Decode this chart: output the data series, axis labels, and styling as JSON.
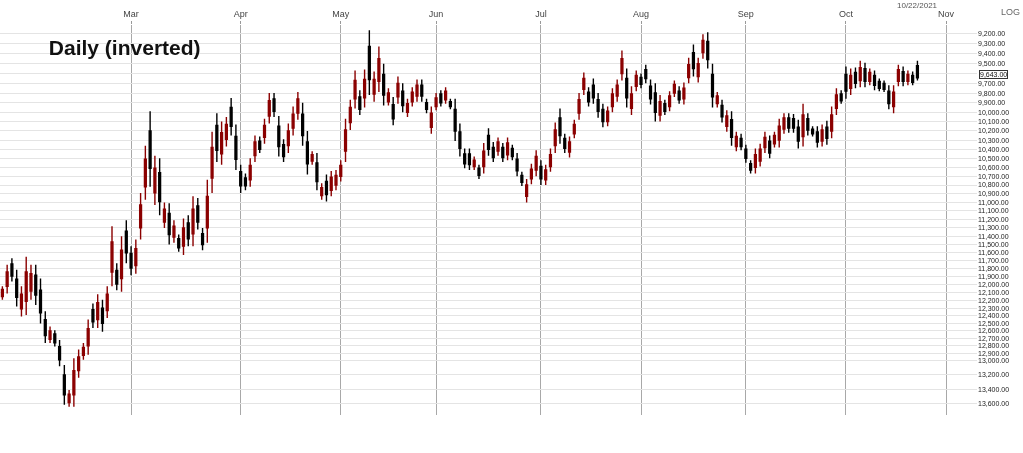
{
  "chart_data": {
    "type": "candlestick",
    "title": "Daily (inverted)",
    "ylabel": "LOG",
    "categories": [
      null,
      null,
      null,
      null,
      null,
      null,
      null,
      null,
      null,
      null,
      null,
      null,
      null,
      null,
      null,
      null,
      null,
      null,
      null,
      null,
      null,
      null,
      null,
      null,
      null,
      null,
      null,
      "Mar",
      null,
      null,
      null,
      null,
      null,
      null,
      null,
      null,
      null,
      null,
      null,
      null,
      null,
      null,
      null,
      null,
      null,
      null,
      null,
      null,
      null,
      null,
      "Apr",
      null,
      null,
      null,
      null,
      null,
      null,
      null,
      null,
      null,
      null,
      null,
      null,
      null,
      null,
      null,
      null,
      null,
      null,
      null,
      null,
      "May",
      null,
      null,
      null,
      null,
      null,
      null,
      null,
      null,
      null,
      null,
      null,
      null,
      null,
      null,
      null,
      null,
      null,
      null,
      null,
      "Jun",
      null,
      null,
      null,
      null,
      null,
      null,
      null,
      null,
      null,
      null,
      null,
      null,
      null,
      null,
      null,
      null,
      null,
      null,
      null,
      null,
      null,
      "Jul",
      null,
      null,
      null,
      null,
      null,
      null,
      null,
      null,
      null,
      null,
      null,
      null,
      null,
      null,
      null,
      null,
      null,
      null,
      null,
      null,
      "Aug",
      null,
      null,
      null,
      null,
      null,
      null,
      null,
      null,
      null,
      null,
      null,
      null,
      null,
      null,
      null,
      null,
      null,
      null,
      null,
      null,
      null,
      "Sep",
      null,
      null,
      null,
      null,
      null,
      null,
      null,
      null,
      null,
      null,
      null,
      null,
      null,
      null,
      null,
      null,
      null,
      null,
      null,
      null,
      "Oct",
      null,
      null,
      null,
      null,
      null,
      null,
      null,
      null,
      null,
      null,
      null,
      null,
      null,
      null,
      null,
      null,
      null,
      null,
      null,
      null,
      "Nov",
      null,
      null,
      null,
      null,
      null,
      null
    ],
    "ohlc": [
      [
        12150,
        12190,
        12020,
        12060
      ],
      [
        12020,
        12110,
        11750,
        11840
      ],
      [
        11740,
        11960,
        11670,
        11890
      ],
      [
        11930,
        12280,
        11810,
        12160
      ],
      [
        12310,
        12410,
        12020,
        12120
      ],
      [
        12210,
        12390,
        11650,
        11840
      ],
      [
        12080,
        12190,
        11750,
        11860
      ],
      [
        11880,
        12260,
        11750,
        12130
      ],
      [
        12070,
        12500,
        11920,
        12360
      ],
      [
        12450,
        12760,
        12340,
        12660
      ],
      [
        12710,
        12760,
        12540,
        12600
      ],
      [
        12640,
        12810,
        12590,
        12760
      ],
      [
        12810,
        13080,
        12720,
        12990
      ],
      [
        13200,
        13620,
        13060,
        13480
      ],
      [
        13590,
        13650,
        13410,
        13470
      ],
      [
        13480,
        13650,
        12970,
        13140
      ],
      [
        13140,
        13240,
        12850,
        12950
      ],
      [
        12930,
        12990,
        12760,
        12820
      ],
      [
        12800,
        12920,
        12450,
        12570
      ],
      [
        12320,
        12560,
        12240,
        12480
      ],
      [
        12450,
        12560,
        12120,
        12230
      ],
      [
        12300,
        12610,
        12190,
        12500
      ],
      [
        12330,
        12430,
        12020,
        12120
      ],
      [
        11840,
        12020,
        11280,
        11470
      ],
      [
        11820,
        12070,
        11730,
        11990
      ],
      [
        11920,
        12090,
        11400,
        11570
      ],
      [
        11340,
        11730,
        11210,
        11600
      ],
      [
        11610,
        11880,
        11520,
        11790
      ],
      [
        11760,
        11860,
        11440,
        11550
      ],
      [
        11300,
        11440,
        10890,
        11030
      ],
      [
        10820,
        10970,
        10360,
        10510
      ],
      [
        10200,
        10820,
        9990,
        10610
      ],
      [
        10890,
        11030,
        10470,
        10610
      ],
      [
        10660,
        11150,
        10500,
        10990
      ],
      [
        11230,
        11300,
        11000,
        11080
      ],
      [
        11130,
        11500,
        11010,
        11380
      ],
      [
        11410,
        11480,
        11210,
        11280
      ],
      [
        11430,
        11590,
        11380,
        11540
      ],
      [
        11520,
        11630,
        11190,
        11300
      ],
      [
        11240,
        11520,
        11150,
        11430
      ],
      [
        11370,
        11520,
        10930,
        11080
      ],
      [
        11040,
        11320,
        10950,
        11230
      ],
      [
        11370,
        11570,
        11300,
        11500
      ],
      [
        11300,
        11480,
        10740,
        10930
      ],
      [
        10720,
        10890,
        10210,
        10380
      ],
      [
        10140,
        10540,
        10010,
        10410
      ],
      [
        10450,
        10570,
        10100,
        10220
      ],
      [
        10290,
        10370,
        10050,
        10130
      ],
      [
        9950,
        10250,
        9850,
        10150
      ],
      [
        10260,
        10630,
        10130,
        10510
      ],
      [
        10650,
        10890,
        10570,
        10810
      ],
      [
        10720,
        10860,
        10670,
        10810
      ],
      [
        10740,
        10820,
        10500,
        10580
      ],
      [
        10470,
        10540,
        10250,
        10320
      ],
      [
        10310,
        10440,
        10260,
        10400
      ],
      [
        10270,
        10340,
        10070,
        10140
      ],
      [
        10040,
        10120,
        9800,
        9880
      ],
      [
        9860,
        10050,
        9800,
        9990
      ],
      [
        10150,
        10480,
        10040,
        10370
      ],
      [
        10350,
        10540,
        10290,
        10480
      ],
      [
        10360,
        10440,
        10120,
        10200
      ],
      [
        10170,
        10250,
        9940,
        10020
      ],
      [
        10010,
        10080,
        9790,
        9860
      ],
      [
        10020,
        10360,
        9900,
        10250
      ],
      [
        10320,
        10680,
        10200,
        10560
      ],
      [
        10530,
        10570,
        10420,
        10460
      ],
      [
        10550,
        10860,
        10440,
        10760
      ],
      [
        10920,
        10970,
        10780,
        10830
      ],
      [
        10760,
        10990,
        10680,
        10910
      ],
      [
        10860,
        10930,
        10640,
        10710
      ],
      [
        10800,
        10860,
        10630,
        10690
      ],
      [
        10700,
        10760,
        10520,
        10580
      ],
      [
        10420,
        10540,
        10070,
        10190
      ],
      [
        10110,
        10190,
        9870,
        9950
      ],
      [
        9860,
        9960,
        9570,
        9670
      ],
      [
        9840,
        10030,
        9770,
        9970
      ],
      [
        9850,
        9950,
        9560,
        9660
      ],
      [
        9330,
        9820,
        9170,
        9660
      ],
      [
        9810,
        9890,
        9580,
        9660
      ],
      [
        9680,
        9790,
        9330,
        9450
      ],
      [
        9610,
        9930,
        9500,
        9820
      ],
      [
        9890,
        9930,
        9750,
        9800
      ],
      [
        9920,
        10140,
        9840,
        10070
      ],
      [
        9840,
        9910,
        9630,
        9700
      ],
      [
        9780,
        10000,
        9700,
        9930
      ],
      [
        10000,
        10050,
        9860,
        9910
      ],
      [
        9890,
        9940,
        9740,
        9790
      ],
      [
        9830,
        9890,
        9660,
        9720
      ],
      [
        9720,
        9890,
        9660,
        9830
      ],
      [
        9900,
        10010,
        9860,
        9970
      ],
      [
        10160,
        10230,
        9940,
        10010
      ],
      [
        9940,
        9980,
        9800,
        9850
      ],
      [
        9810,
        9940,
        9770,
        9900
      ],
      [
        9870,
        9910,
        9740,
        9780
      ],
      [
        9890,
        9970,
        9860,
        9940
      ],
      [
        9970,
        10310,
        9860,
        10200
      ],
      [
        10210,
        10480,
        10120,
        10390
      ],
      [
        10450,
        10610,
        10390,
        10560
      ],
      [
        10450,
        10630,
        10390,
        10570
      ],
      [
        10590,
        10630,
        10480,
        10520
      ],
      [
        10610,
        10730,
        10570,
        10690
      ],
      [
        10590,
        10670,
        10330,
        10420
      ],
      [
        10250,
        10470,
        10170,
        10400
      ],
      [
        10380,
        10540,
        10320,
        10490
      ],
      [
        10420,
        10470,
        10270,
        10320
      ],
      [
        10380,
        10540,
        10330,
        10490
      ],
      [
        10460,
        10520,
        10270,
        10330
      ],
      [
        10390,
        10520,
        10350,
        10480
      ],
      [
        10510,
        10700,
        10440,
        10640
      ],
      [
        10690,
        10810,
        10650,
        10770
      ],
      [
        10930,
        11000,
        10730,
        10800
      ],
      [
        10730,
        10790,
        10560,
        10620
      ],
      [
        10630,
        10700,
        10410,
        10480
      ],
      [
        10590,
        10800,
        10520,
        10730
      ],
      [
        10740,
        10800,
        10570,
        10630
      ],
      [
        10590,
        10650,
        10390,
        10460
      ],
      [
        10360,
        10440,
        10110,
        10190
      ],
      [
        10060,
        10340,
        9960,
        10250
      ],
      [
        10280,
        10440,
        10230,
        10390
      ],
      [
        10430,
        10490,
        10260,
        10320
      ],
      [
        10230,
        10280,
        10080,
        10130
      ],
      [
        10010,
        10080,
        9800,
        9870
      ],
      [
        9760,
        9820,
        9590,
        9650
      ],
      [
        9790,
        9940,
        9740,
        9890
      ],
      [
        9720,
        9910,
        9650,
        9850
      ],
      [
        9870,
        10060,
        9800,
        9990
      ],
      [
        9970,
        10160,
        9910,
        10100
      ],
      [
        10100,
        10150,
        9940,
        9990
      ],
      [
        9940,
        10000,
        9750,
        9810
      ],
      [
        9830,
        9890,
        9660,
        9720
      ],
      [
        9600,
        9670,
        9370,
        9450
      ],
      [
        9650,
        9950,
        9550,
        9850
      ],
      [
        9960,
        10030,
        9730,
        9810
      ],
      [
        9730,
        9780,
        9570,
        9620
      ],
      [
        9640,
        9750,
        9600,
        9710
      ],
      [
        9560,
        9700,
        9510,
        9650
      ],
      [
        9730,
        9920,
        9660,
        9860
      ],
      [
        9800,
        10100,
        9700,
        10000
      ],
      [
        10030,
        10100,
        9820,
        9890
      ],
      [
        9910,
        10030,
        9870,
        9990
      ],
      [
        9940,
        9990,
        9780,
        9830
      ],
      [
        9800,
        9840,
        9670,
        9710
      ],
      [
        9780,
        9910,
        9730,
        9870
      ],
      [
        9860,
        9920,
        9690,
        9750
      ],
      [
        9640,
        9700,
        9440,
        9510
      ],
      [
        9390,
        9630,
        9310,
        9550
      ],
      [
        9630,
        9690,
        9440,
        9500
      ],
      [
        9390,
        9450,
        9210,
        9270
      ],
      [
        9280,
        9550,
        9190,
        9460
      ],
      [
        9610,
        9950,
        9500,
        9840
      ],
      [
        9910,
        9950,
        9790,
        9830
      ],
      [
        9930,
        10110,
        9870,
        10050
      ],
      [
        10150,
        10210,
        9980,
        10040
      ],
      [
        10080,
        10360,
        9990,
        10270
      ],
      [
        10370,
        10420,
        10210,
        10260
      ],
      [
        10280,
        10410,
        10230,
        10370
      ],
      [
        10400,
        10550,
        10350,
        10500
      ],
      [
        10560,
        10670,
        10520,
        10630
      ],
      [
        10600,
        10670,
        10390,
        10460
      ],
      [
        10530,
        10590,
        10340,
        10400
      ],
      [
        10380,
        10440,
        10210,
        10270
      ],
      [
        10310,
        10500,
        10250,
        10440
      ],
      [
        10340,
        10380,
        10210,
        10250
      ],
      [
        10300,
        10380,
        10070,
        10150
      ],
      [
        10180,
        10230,
        10010,
        10060
      ],
      [
        10060,
        10220,
        10010,
        10170
      ],
      [
        10070,
        10220,
        10020,
        10170
      ],
      [
        10160,
        10390,
        10080,
        10310
      ],
      [
        10260,
        10370,
        9910,
        10030
      ],
      [
        10070,
        10250,
        10010,
        10190
      ],
      [
        10180,
        10260,
        10150,
        10230
      ],
      [
        10210,
        10380,
        10150,
        10320
      ],
      [
        10310,
        10370,
        10130,
        10190
      ],
      [
        10160,
        10350,
        10090,
        10280
      ],
      [
        10200,
        10280,
        9940,
        10030
      ],
      [
        9960,
        10030,
        9750,
        9820
      ],
      [
        9810,
        9910,
        9770,
        9880
      ],
      [
        9610,
        9860,
        9530,
        9780
      ],
      [
        9750,
        9820,
        9550,
        9620
      ],
      [
        9590,
        9750,
        9540,
        9700
      ],
      [
        9670,
        9740,
        9470,
        9540
      ],
      [
        9550,
        9740,
        9490,
        9680
      ],
      [
        9680,
        9720,
        9550,
        9590
      ],
      [
        9620,
        9770,
        9570,
        9720
      ],
      [
        9680,
        9780,
        9650,
        9750
      ],
      [
        9700,
        9790,
        9670,
        9760
      ],
      [
        9780,
        9970,
        9720,
        9910
      ],
      [
        9940,
        10010,
        9720,
        9790
      ],
      [
        9680,
        9730,
        9510,
        9560
      ],
      [
        9580,
        9730,
        9530,
        9680
      ],
      [
        9680,
        9720,
        9570,
        9610
      ],
      [
        9620,
        9720,
        9580,
        9690
      ],
      [
        9520,
        9670,
        9470,
        9643
      ],
      null,
      null,
      null,
      null,
      null,
      null,
      null,
      null,
      null,
      null,
      null,
      null
    ],
    "colors": [
      "#8b0000",
      "#8b0000",
      "#000000",
      "#000000",
      "#8b0000",
      "#8b0000",
      "#8b0000",
      "#000000",
      "#000000",
      "#000000",
      "#8b0000",
      "#000000",
      "#000000",
      "#000000",
      "#8b0000",
      "#8b0000",
      "#8b0000",
      "#8b0000",
      "#8b0000",
      "#000000",
      "#8b0000",
      "#000000",
      "#8b0000",
      "#8b0000",
      "#000000",
      "#8b0000",
      "#000000",
      "#000000",
      "#8b0000",
      "#8b0000",
      "#8b0000",
      "#000000",
      "#8b0000",
      "#000000",
      "#8b0000",
      "#000000",
      "#8b0000",
      "#000000",
      "#8b0000",
      "#000000",
      "#8b0000",
      "#000000",
      "#000000",
      "#8b0000",
      "#8b0000",
      "#000000",
      "#8b0000",
      "#8b0000",
      "#000000",
      "#000000",
      "#000000",
      "#000000",
      "#8b0000",
      "#8b0000",
      "#000000",
      "#8b0000",
      "#8b0000",
      "#000000",
      "#000000",
      "#000000",
      "#8b0000",
      "#8b0000",
      "#8b0000",
      "#000000",
      "#000000",
      "#8b0000",
      "#000000",
      "#8b0000",
      "#000000",
      "#8b0000",
      "#8b0000",
      "#8b0000",
      "#8b0000",
      "#8b0000",
      "#8b0000",
      "#000000",
      "#8b0000",
      "#000000",
      "#8b0000",
      "#8b0000",
      "#000000",
      "#8b0000",
      "#000000",
      "#8b0000",
      "#000000",
      "#8b0000",
      "#8b0000",
      "#8b0000",
      "#000000",
      "#000000",
      "#8b0000",
      "#8b0000",
      "#000000",
      "#8b0000",
      "#000000",
      "#000000",
      "#000000",
      "#000000",
      "#000000",
      "#8b0000",
      "#000000",
      "#8b0000",
      "#000000",
      "#000000",
      "#8b0000",
      "#000000",
      "#8b0000",
      "#000000",
      "#000000",
      "#000000",
      "#8b0000",
      "#8b0000",
      "#8b0000",
      "#000000",
      "#8b0000",
      "#8b0000",
      "#8b0000",
      "#000000",
      "#000000",
      "#8b0000",
      "#8b0000",
      "#8b0000",
      "#8b0000",
      "#000000",
      "#000000",
      "#000000",
      "#000000",
      "#8b0000",
      "#8b0000",
      "#8b0000",
      "#8b0000",
      "#000000",
      "#8b0000",
      "#8b0000",
      "#000000",
      "#000000",
      "#000000",
      "#000000",
      "#8b0000",
      "#000000",
      "#8b0000",
      "#8b0000",
      "#000000",
      "#8b0000",
      "#8b0000",
      "#000000",
      "#8b0000",
      "#8b0000",
      "#000000",
      "#000000",
      "#8b0000",
      "#000000",
      "#8b0000",
      "#000000",
      "#8b0000",
      "#000000",
      "#000000",
      "#000000",
      "#8b0000",
      "#8b0000",
      "#8b0000",
      "#000000",
      "#8b0000",
      "#8b0000",
      "#8b0000",
      "#000000",
      "#000000",
      "#000000",
      "#8b0000",
      "#000000",
      "#000000",
      "#000000",
      "#8b0000",
      "#000000",
      "#8b0000",
      "#8b0000",
      "#000000",
      "#000000",
      "#8b0000",
      "#000000",
      "#8b0000",
      "#000000",
      "#8b0000",
      "#000000",
      "#000000",
      "#000000",
      "#000000",
      "#8b0000",
      "#8b0000",
      "#000000",
      "#8b0000",
      "#000000",
      "#000000",
      null,
      null,
      null,
      null,
      null,
      null,
      null,
      null,
      null,
      null,
      null,
      null
    ],
    "ylim": [
      13770,
      9120
    ],
    "log": true,
    "yticks": [
      {
        "value": 9200,
        "label": "9,200.00"
      },
      {
        "value": 9300,
        "label": "9,300.00"
      },
      {
        "value": 9400,
        "label": "9,400.00"
      },
      {
        "value": 9500,
        "label": "9,500.00"
      },
      {
        "value": 9600,
        "label": null
      },
      {
        "value": 9700,
        "label": "9,700.00"
      },
      {
        "value": 9800,
        "label": "9,800.00"
      },
      {
        "value": 9900,
        "label": "9,900.00"
      },
      {
        "value": 10000,
        "label": "10,000.00"
      },
      {
        "value": 10100,
        "label": "10,100.00"
      },
      {
        "value": 10200,
        "label": "10,200.00"
      },
      {
        "value": 10300,
        "label": "10,300.00"
      },
      {
        "value": 10400,
        "label": "10,400.00"
      },
      {
        "value": 10500,
        "label": "10,500.00"
      },
      {
        "value": 10600,
        "label": "10,600.00"
      },
      {
        "value": 10700,
        "label": "10,700.00"
      },
      {
        "value": 10800,
        "label": "10,800.00"
      },
      {
        "value": 10900,
        "label": "10,900.00"
      },
      {
        "value": 11000,
        "label": "11,000.00"
      },
      {
        "value": 11100,
        "label": "11,100.00"
      },
      {
        "value": 11200,
        "label": "11,200.00"
      },
      {
        "value": 11300,
        "label": "11,300.00"
      },
      {
        "value": 11400,
        "label": "11,400.00"
      },
      {
        "value": 11500,
        "label": "11,500.00"
      },
      {
        "value": 11600,
        "label": "11,600.00"
      },
      {
        "value": 11700,
        "label": "11,700.00"
      },
      {
        "value": 11800,
        "label": "11,800.00"
      },
      {
        "value": 11900,
        "label": "11,900.00"
      },
      {
        "value": 12000,
        "label": "12,000.00"
      },
      {
        "value": 12100,
        "label": "12,100.00"
      },
      {
        "value": 12200,
        "label": "12,200.00"
      },
      {
        "value": 12300,
        "label": "12,300.00"
      },
      {
        "value": 12400,
        "label": "12,400.00"
      },
      {
        "value": 12500,
        "label": "12,500.00"
      },
      {
        "value": 12600,
        "label": "12,600.00"
      },
      {
        "value": 12700,
        "label": "12,700.00"
      },
      {
        "value": 12800,
        "label": "12,800.00"
      },
      {
        "value": 12900,
        "label": "12,900.00"
      },
      {
        "value": 13000,
        "label": "13,000.00"
      },
      {
        "value": 13200,
        "label": "13,200.00"
      },
      {
        "value": 13400,
        "label": "13,400.00"
      },
      {
        "value": 13600,
        "label": "13,600.00"
      }
    ],
    "grid": true,
    "annotations": [
      "10/22/2021",
      "9,643.00"
    ]
  }
}
